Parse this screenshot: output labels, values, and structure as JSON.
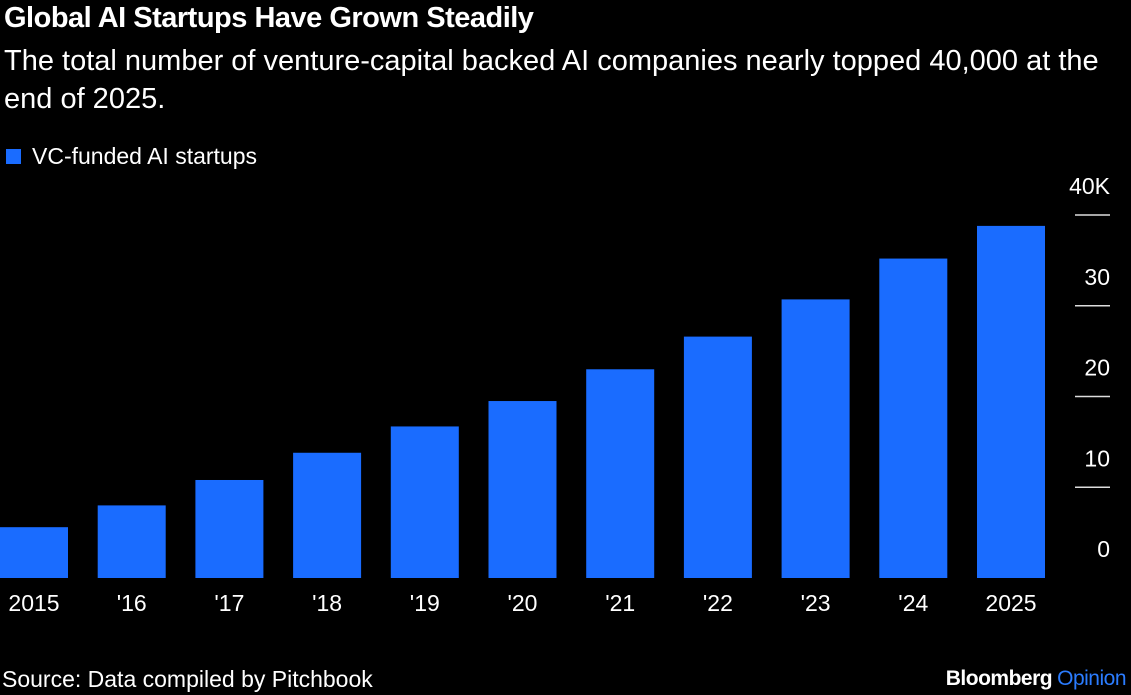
{
  "chart_data": {
    "type": "bar",
    "title": "Global AI Startups Have Grown Steadily",
    "subtitle": "The total number of venture-capital backed AI companies nearly topped 40,000 at the end of 2025.",
    "categories": [
      "2015",
      "'16",
      "'17",
      "'18",
      "'19",
      "'20",
      "'21",
      "'22",
      "'23",
      "'24",
      "2025"
    ],
    "series": [
      {
        "name": "VC-funded AI startups",
        "color": "#1a6cff",
        "values": [
          5.6,
          8.0,
          10.8,
          13.8,
          16.7,
          19.5,
          23.0,
          26.6,
          30.7,
          35.2,
          38.8
        ]
      }
    ],
    "ylim": [
      0,
      40
    ],
    "yticks": [
      0,
      10,
      20,
      30,
      {
        "value": 40,
        "label": "40K"
      }
    ],
    "source": "Source: Data compiled by Pitchbook",
    "branding": [
      "Bloomberg",
      "Opinion"
    ]
  }
}
